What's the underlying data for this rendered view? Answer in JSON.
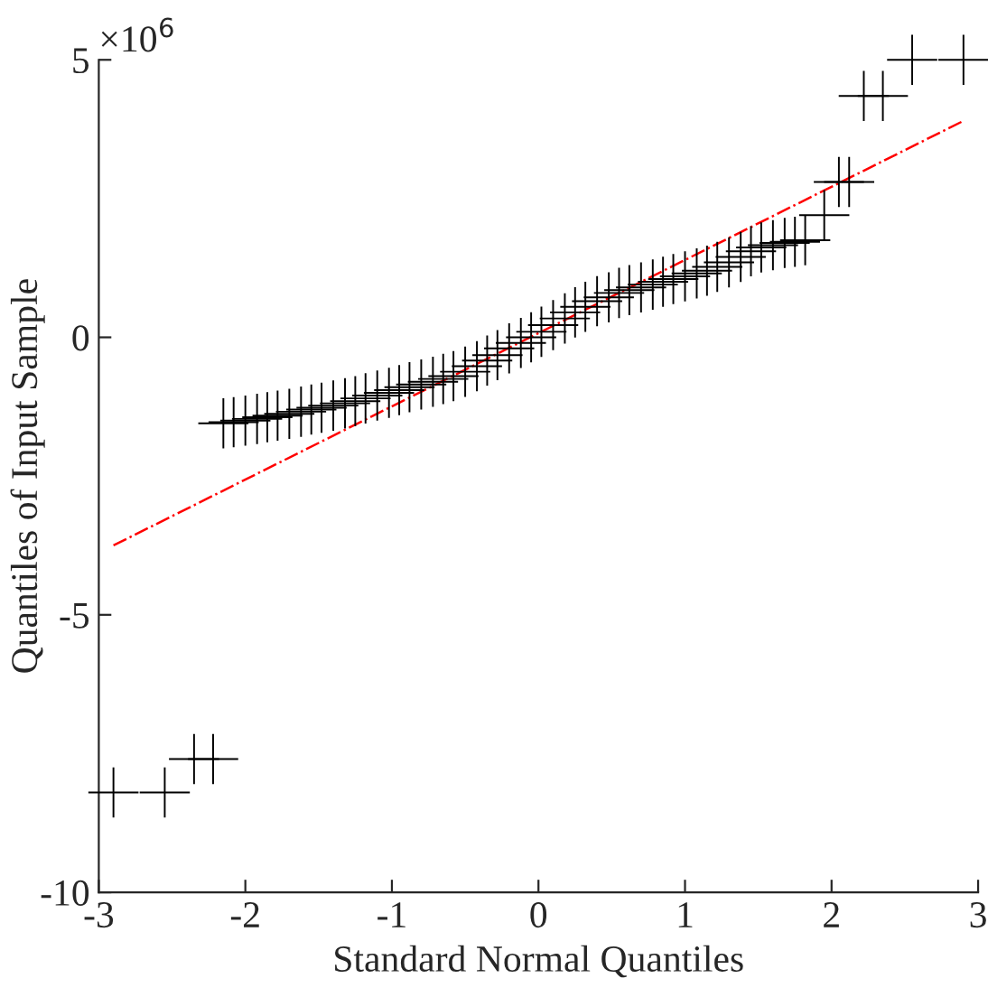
{
  "chart_data": {
    "type": "scatter",
    "xlabel": "Standard Normal Quantiles",
    "ylabel": "Quantiles of Input Sample",
    "annotations": [
      "×10$^{6}$"
    ],
    "xlim": [
      -3,
      3
    ],
    "ylim": [
      -10,
      5
    ],
    "xticks": [
      -3,
      -2,
      -1,
      0,
      1,
      2,
      3
    ],
    "yticks": [
      -10,
      -5,
      0,
      5
    ],
    "grid": false,
    "legend": false,
    "marker": "cross",
    "series": [
      {
        "color": "#000000",
        "x": [
          -2.9,
          -2.55,
          -2.35,
          -2.22,
          -2.15,
          -2.08,
          -2.0,
          -1.92,
          -1.85,
          -1.78,
          -1.7,
          -1.62,
          -1.55,
          -1.48,
          -1.4,
          -1.32,
          -1.25,
          -1.18,
          -1.1,
          -1.02,
          -0.95,
          -0.88,
          -0.8,
          -0.72,
          -0.65,
          -0.58,
          -0.5,
          -0.42,
          -0.35,
          -0.28,
          -0.2,
          -0.12,
          -0.05,
          0.02,
          0.1,
          0.18,
          0.25,
          0.32,
          0.4,
          0.48,
          0.55,
          0.62,
          0.7,
          0.78,
          0.85,
          0.92,
          1.0,
          1.08,
          1.15,
          1.22,
          1.3,
          1.38,
          1.45,
          1.52,
          1.6,
          1.68,
          1.75,
          1.82,
          1.95,
          2.05,
          2.12,
          2.22,
          2.35,
          2.55,
          2.9
        ],
        "values": [
          -8.2,
          -8.2,
          -7.6,
          -7.6,
          -1.55,
          -1.53,
          -1.5,
          -1.47,
          -1.44,
          -1.41,
          -1.38,
          -1.34,
          -1.3,
          -1.27,
          -1.23,
          -1.19,
          -1.15,
          -1.1,
          -1.05,
          -1.0,
          -0.95,
          -0.9,
          -0.85,
          -0.8,
          -0.75,
          -0.7,
          -0.62,
          -0.52,
          -0.42,
          -0.32,
          -0.2,
          -0.1,
          0.0,
          0.1,
          0.22,
          0.34,
          0.45,
          0.55,
          0.65,
          0.72,
          0.8,
          0.85,
          0.9,
          0.95,
          1.0,
          1.05,
          1.1,
          1.15,
          1.2,
          1.27,
          1.35,
          1.45,
          1.55,
          1.62,
          1.66,
          1.7,
          1.72,
          1.75,
          2.2,
          2.8,
          2.8,
          4.35,
          4.35,
          5.0,
          5.0
        ]
      },
      {
        "type": "line",
        "color": "#ff0000",
        "line_style": "dashdot",
        "marker": "none",
        "x": [
          -2.9,
          2.9
        ],
        "values": [
          -3.75,
          3.9
        ]
      }
    ]
  }
}
